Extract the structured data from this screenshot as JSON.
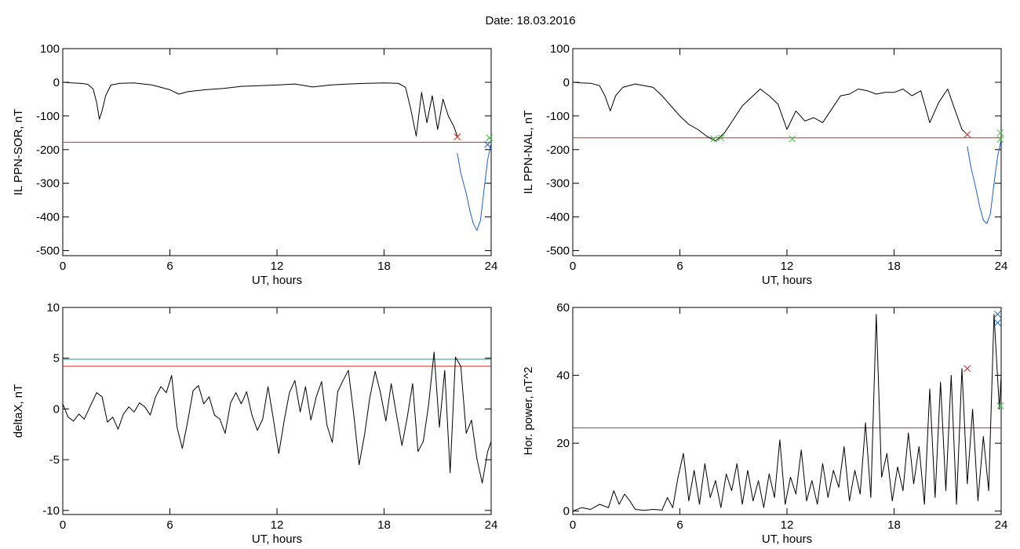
{
  "header": {
    "title": "Date:  18.03.2016"
  },
  "colors": {
    "curve": "#000000",
    "threshold": "#e3231c",
    "teal": "#2a9d93",
    "blue": "#1f5fd6",
    "green": "#39c23b"
  },
  "chart_data": [
    {
      "id": "il-sor",
      "type": "line",
      "title": "",
      "xlabel": "UT, hours",
      "ylabel": "IL PPN-SOR, nT",
      "xlim": [
        0,
        24
      ],
      "ylim": [
        -515,
        100
      ],
      "xticks": [
        0,
        6,
        12,
        18,
        24
      ],
      "yticks": [
        100,
        0,
        -100,
        -200,
        -300,
        -400,
        -500
      ],
      "series": [
        {
          "color": "black",
          "x": [
            0,
            0.5,
            1,
            1.4,
            1.7,
            1.9,
            2.05,
            2.2,
            2.4,
            2.7,
            3.2,
            4,
            5,
            6,
            6.5,
            7,
            8,
            9,
            10,
            11,
            12,
            13,
            14,
            15,
            16,
            17,
            18,
            18.8,
            19.2,
            19.5,
            19.8,
            20.1,
            20.4,
            20.7,
            21,
            21.3,
            21.6,
            21.9,
            22.1
          ],
          "y": [
            0,
            -2,
            -3,
            -6,
            -20,
            -60,
            -110,
            -85,
            -40,
            -8,
            -3,
            -2,
            -8,
            -22,
            -35,
            -28,
            -22,
            -18,
            -12,
            -10,
            -8,
            -5,
            -14,
            -8,
            -5,
            -3,
            -2,
            -3,
            -15,
            -80,
            -160,
            -30,
            -120,
            -40,
            -140,
            -50,
            -100,
            -130,
            -160
          ]
        },
        {
          "color": "blue",
          "x": [
            22.1,
            22.3,
            22.6,
            22.8,
            23,
            23.2,
            23.4,
            23.6,
            23.8,
            24
          ],
          "y": [
            -210,
            -270,
            -330,
            -380,
            -420,
            -440,
            -410,
            -320,
            -230,
            -180
          ]
        }
      ],
      "hlines": [
        {
          "y": -178,
          "color": "red"
        }
      ],
      "markers": [
        {
          "x": 22.1,
          "y": -162,
          "color": "red"
        },
        {
          "x": 23.8,
          "y": -185,
          "color": "blue"
        },
        {
          "x": 23.9,
          "y": -165,
          "color": "green"
        }
      ]
    },
    {
      "id": "il-nal",
      "type": "line",
      "title": "",
      "xlabel": "UT, hours",
      "ylabel": "IL PPN-NAL, nT",
      "xlim": [
        0,
        24
      ],
      "ylim": [
        -515,
        100
      ],
      "xticks": [
        0,
        6,
        12,
        18,
        24
      ],
      "yticks": [
        100,
        0,
        -100,
        -200,
        -300,
        -400,
        -500
      ],
      "series": [
        {
          "color": "black",
          "x": [
            0,
            0.5,
            1,
            1.5,
            1.8,
            2.1,
            2.4,
            2.8,
            3.5,
            4.5,
            5,
            5.5,
            6,
            6.5,
            7,
            7.5,
            8,
            8.5,
            9,
            9.5,
            10,
            10.5,
            11,
            11.5,
            12,
            12.5,
            13,
            13.5,
            14,
            14.5,
            15,
            15.5,
            16,
            16.5,
            17,
            17.5,
            18,
            18.5,
            19,
            19.5,
            20,
            20.5,
            21,
            21.4,
            21.8,
            22.1
          ],
          "y": [
            0,
            -2,
            -3,
            -10,
            -40,
            -85,
            -40,
            -15,
            -5,
            -15,
            -40,
            -70,
            -100,
            -125,
            -140,
            -160,
            -175,
            -150,
            -110,
            -70,
            -45,
            -20,
            -40,
            -65,
            -140,
            -85,
            -115,
            -105,
            -120,
            -80,
            -40,
            -35,
            -20,
            -25,
            -35,
            -30,
            -30,
            -20,
            -40,
            -25,
            -120,
            -60,
            -20,
            -80,
            -140,
            -155
          ]
        },
        {
          "color": "blue",
          "x": [
            22.1,
            22.3,
            22.6,
            22.8,
            23,
            23.2,
            23.4,
            23.6,
            23.8,
            24
          ],
          "y": [
            -190,
            -250,
            -320,
            -370,
            -410,
            -420,
            -390,
            -300,
            -220,
            -170
          ]
        }
      ],
      "hlines": [
        {
          "y": -165,
          "color": "red"
        }
      ],
      "markers": [
        {
          "x": 22.1,
          "y": -155,
          "color": "red"
        },
        {
          "x": 7.9,
          "y": -168,
          "color": "green"
        },
        {
          "x": 8.3,
          "y": -165,
          "color": "green"
        },
        {
          "x": 12.3,
          "y": -168,
          "color": "green"
        },
        {
          "x": 23.95,
          "y": -150,
          "color": "green"
        },
        {
          "x": 23.95,
          "y": -170,
          "color": "green"
        }
      ]
    },
    {
      "id": "deltax",
      "type": "line",
      "title": "",
      "xlabel": "UT, hours",
      "ylabel": "deltaX, nT",
      "xlim": [
        0,
        24
      ],
      "ylim": [
        -10.4,
        10
      ],
      "xticks": [
        0,
        6,
        12,
        18,
        24
      ],
      "yticks": [
        10,
        5,
        0,
        -5,
        -10
      ],
      "series": [
        {
          "color": "black",
          "x": [
            0,
            0.3,
            0.6,
            0.9,
            1.2,
            1.6,
            1.9,
            2.2,
            2.5,
            2.8,
            3.1,
            3.4,
            3.7,
            4,
            4.3,
            4.6,
            4.9,
            5.2,
            5.5,
            5.8,
            6.1,
            6.4,
            6.7,
            7,
            7.3,
            7.6,
            7.9,
            8.2,
            8.5,
            8.8,
            9.1,
            9.4,
            9.7,
            10,
            10.3,
            10.6,
            10.9,
            11.2,
            11.5,
            11.8,
            12.1,
            12.4,
            12.7,
            13,
            13.3,
            13.6,
            13.9,
            14.2,
            14.5,
            14.8,
            15.1,
            15.4,
            15.7,
            16,
            16.3,
            16.6,
            16.9,
            17.2,
            17.5,
            17.8,
            18.1,
            18.4,
            18.7,
            19,
            19.3,
            19.6,
            19.9,
            20.2,
            20.5,
            20.8,
            21.1,
            21.4,
            21.7,
            22,
            22.3,
            22.6,
            22.9,
            23.2,
            23.5,
            23.8,
            24
          ],
          "y": [
            0.5,
            -0.8,
            -1.2,
            -0.5,
            -1,
            0.5,
            1.6,
            1.2,
            -1.3,
            -0.8,
            -2,
            -0.5,
            0.2,
            -0.3,
            0.6,
            0.2,
            -0.6,
            1.2,
            2.2,
            1.6,
            3.3,
            -1.8,
            -3.9,
            -1.2,
            1.8,
            2.3,
            0.5,
            1.2,
            -0.6,
            -1,
            -2.4,
            0.6,
            1.6,
            0.5,
            1.7,
            -0.6,
            -2.1,
            -1,
            2.2,
            -1,
            -4.4,
            -1.2,
            1.6,
            2.8,
            -0.3,
            2.2,
            -1.1,
            1.2,
            2.7,
            -1.6,
            -3.3,
            1.7,
            2.8,
            3.8,
            -0.5,
            -5.5,
            -2.6,
            1.1,
            3.7,
            1.6,
            -1.2,
            2.5,
            -0.6,
            -3.6,
            -0.8,
            2.5,
            -4.2,
            -3.2,
            0.5,
            5.6,
            -1.8,
            3.8,
            -6.3,
            5.1,
            4.2,
            -2.4,
            -1.1,
            -4.9,
            -7.3,
            -4.2,
            -3.2
          ]
        }
      ],
      "hlines": [
        {
          "y": 4.9,
          "color": "teal"
        },
        {
          "y": 4.2,
          "color": "red"
        }
      ],
      "markers": []
    },
    {
      "id": "hor-power",
      "type": "line",
      "title": "",
      "xlabel": "UT, hours",
      "ylabel": "Hor. power, nT^2",
      "xlim": [
        0,
        24
      ],
      "ylim": [
        -1,
        60
      ],
      "xticks": [
        0,
        6,
        12,
        18,
        24
      ],
      "yticks": [
        60,
        40,
        20,
        0
      ],
      "series": [
        {
          "color": "black",
          "x": [
            0,
            0.5,
            1,
            1.5,
            2,
            2.3,
            2.6,
            2.9,
            3.2,
            3.5,
            4,
            4.5,
            5,
            5.3,
            5.6,
            5.9,
            6.2,
            6.5,
            6.8,
            7.1,
            7.4,
            7.7,
            8,
            8.3,
            8.6,
            8.9,
            9.2,
            9.5,
            9.8,
            10.1,
            10.4,
            10.7,
            11,
            11.3,
            11.6,
            11.9,
            12.2,
            12.5,
            12.8,
            13.1,
            13.4,
            13.7,
            14,
            14.3,
            14.6,
            14.9,
            15.2,
            15.5,
            15.8,
            16.1,
            16.4,
            16.7,
            17,
            17.3,
            17.6,
            17.9,
            18.2,
            18.5,
            18.8,
            19.1,
            19.4,
            19.7,
            20,
            20.3,
            20.6,
            20.9,
            21.2,
            21.5,
            21.8,
            22.1,
            22.4,
            22.7,
            23,
            23.3,
            23.6,
            23.9,
            24
          ],
          "y": [
            0,
            1,
            0.5,
            2,
            1,
            6,
            2,
            5,
            3,
            0.5,
            0.2,
            0.5,
            0.3,
            4,
            1,
            10,
            17,
            3,
            12,
            2,
            14,
            4,
            9,
            1,
            11,
            6,
            14,
            2,
            12,
            3,
            9,
            1,
            11,
            4,
            21,
            2,
            10,
            5,
            18,
            3,
            9,
            2,
            14,
            4,
            12,
            7,
            19,
            3,
            12,
            5,
            26,
            4,
            58,
            10,
            17,
            3,
            13,
            6,
            23,
            8,
            19,
            2,
            36,
            4,
            38,
            6,
            40,
            2,
            42,
            8,
            30,
            3,
            22,
            6,
            58,
            30,
            40
          ]
        }
      ],
      "hlines": [
        {
          "y": 24.5,
          "color": "red"
        }
      ],
      "markers": [
        {
          "x": 22.1,
          "y": 42,
          "color": "red"
        },
        {
          "x": 23.8,
          "y": 58,
          "color": "blue"
        },
        {
          "x": 23.8,
          "y": 55.5,
          "color": "blue"
        },
        {
          "x": 23.95,
          "y": 31,
          "color": "green"
        }
      ]
    }
  ]
}
